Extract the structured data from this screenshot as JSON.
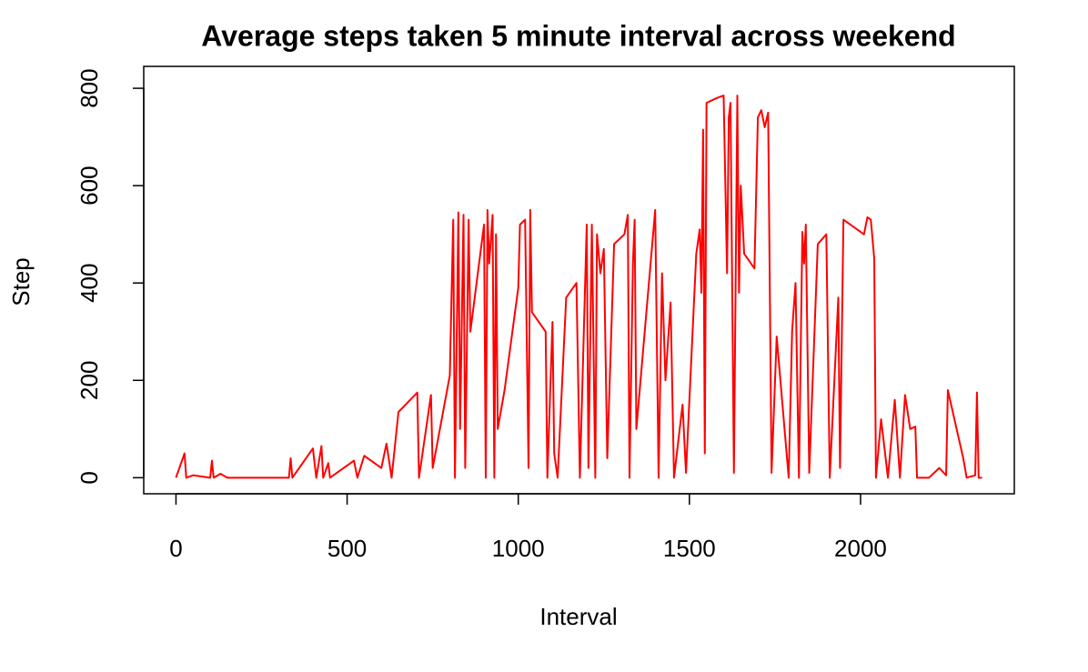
{
  "chart_data": {
    "type": "line",
    "title": "Average steps taken 5 minute interval across weekend",
    "x_label": "Interval",
    "y_label": "Step",
    "x": [
      0,
      25,
      30,
      50,
      100,
      105,
      110,
      130,
      150,
      330,
      335,
      340,
      400,
      410,
      425,
      430,
      445,
      450,
      520,
      530,
      550,
      600,
      615,
      630,
      650,
      705,
      710,
      745,
      750,
      800,
      810,
      815,
      825,
      830,
      840,
      845,
      855,
      860,
      900,
      905,
      910,
      915,
      925,
      930,
      935,
      940,
      960,
      1000,
      1005,
      1020,
      1030,
      1035,
      1040,
      1080,
      1085,
      1100,
      1105,
      1115,
      1140,
      1170,
      1180,
      1200,
      1205,
      1215,
      1225,
      1230,
      1240,
      1250,
      1260,
      1280,
      1310,
      1320,
      1325,
      1335,
      1340,
      1345,
      1400,
      1410,
      1420,
      1430,
      1445,
      1455,
      1480,
      1490,
      1520,
      1530,
      1535,
      1540,
      1545,
      1550,
      1580,
      1600,
      1610,
      1615,
      1620,
      1630,
      1640,
      1645,
      1650,
      1660,
      1690,
      1700,
      1710,
      1720,
      1730,
      1740,
      1755,
      1790,
      1800,
      1810,
      1820,
      1830,
      1835,
      1840,
      1850,
      1875,
      1900,
      1910,
      1935,
      1940,
      1950,
      2010,
      2020,
      2030,
      2040,
      2045,
      2060,
      2080,
      2100,
      2115,
      2130,
      2145,
      2160,
      2165,
      2200,
      2230,
      2250,
      2255,
      2300,
      2310,
      2335,
      2340,
      2345,
      2355
    ],
    "series": [
      {
        "name": "Step",
        "color": "#ff0000",
        "values": [
          0,
          50,
          0,
          5,
          0,
          35,
          0,
          8,
          0,
          0,
          40,
          0,
          60,
          0,
          65,
          0,
          30,
          0,
          35,
          0,
          45,
          20,
          70,
          0,
          135,
          175,
          0,
          170,
          20,
          210,
          530,
          0,
          545,
          100,
          540,
          20,
          530,
          300,
          520,
          0,
          550,
          440,
          540,
          0,
          500,
          100,
          180,
          390,
          520,
          530,
          20,
          550,
          340,
          300,
          0,
          320,
          50,
          0,
          370,
          400,
          0,
          520,
          20,
          520,
          0,
          500,
          420,
          470,
          40,
          480,
          500,
          540,
          0,
          440,
          530,
          100,
          550,
          0,
          420,
          200,
          360,
          0,
          150,
          10,
          460,
          510,
          380,
          715,
          50,
          770,
          780,
          785,
          420,
          740,
          770,
          10,
          785,
          380,
          600,
          460,
          430,
          740,
          755,
          720,
          750,
          10,
          290,
          0,
          300,
          400,
          0,
          505,
          440,
          520,
          10,
          480,
          500,
          0,
          370,
          20,
          530,
          500,
          535,
          530,
          450,
          0,
          120,
          0,
          160,
          0,
          170,
          100,
          105,
          0,
          0,
          20,
          5,
          180,
          40,
          0,
          5,
          175,
          0,
          0
        ]
      }
    ],
    "xlim": [
      -94.2,
      2449.2
    ],
    "ylim": [
      -33,
      845
    ],
    "xticks": [
      0,
      500,
      1000,
      1500,
      2000
    ],
    "yticks": [
      0,
      200,
      400,
      600,
      800
    ]
  }
}
